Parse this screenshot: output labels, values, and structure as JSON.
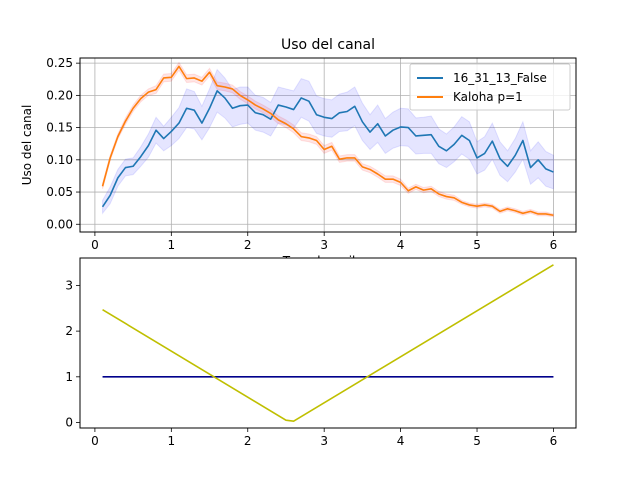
{
  "chart_data": [
    {
      "type": "line",
      "title": "Uso del canal",
      "xlabel": "Tasa de arribos",
      "ylabel": "Uso del canal",
      "xlim": [
        -0.195,
        6.295
      ],
      "ylim": [
        -0.012,
        0.258
      ],
      "x_ticks": [
        0,
        1,
        2,
        3,
        4,
        5,
        6
      ],
      "y_ticks": [
        0.0,
        0.05,
        0.1,
        0.15,
        0.2,
        0.25
      ],
      "y_tick_labels": [
        "0.00",
        "0.05",
        "0.10",
        "0.15",
        "0.20",
        "0.25"
      ],
      "grid": true,
      "legend_position": "top-right",
      "x": [
        0.1,
        0.2,
        0.3,
        0.4,
        0.5,
        0.6,
        0.7,
        0.8,
        0.9,
        1.0,
        1.1,
        1.2,
        1.3,
        1.4,
        1.5,
        1.6,
        1.7,
        1.8,
        1.9,
        2.0,
        2.1,
        2.2,
        2.3,
        2.4,
        2.5,
        2.6,
        2.7,
        2.8,
        2.9,
        3.0,
        3.1,
        3.2,
        3.3,
        3.4,
        3.5,
        3.6,
        3.7,
        3.8,
        3.9,
        4.0,
        4.1,
        4.2,
        4.3,
        4.4,
        4.5,
        4.6,
        4.7,
        4.8,
        4.9,
        5.0,
        5.1,
        5.2,
        5.3,
        5.4,
        5.5,
        5.6,
        5.7,
        5.8,
        5.9,
        6.0
      ],
      "series": [
        {
          "name": "16_31_13_False",
          "color": "#1f77b4",
          "band_color": "#0000ff",
          "values": [
            0.027,
            0.045,
            0.072,
            0.088,
            0.09,
            0.105,
            0.122,
            0.146,
            0.133,
            0.144,
            0.157,
            0.18,
            0.177,
            0.157,
            0.18,
            0.207,
            0.196,
            0.18,
            0.184,
            0.185,
            0.173,
            0.17,
            0.163,
            0.185,
            0.182,
            0.178,
            0.196,
            0.191,
            0.17,
            0.166,
            0.164,
            0.173,
            0.175,
            0.183,
            0.159,
            0.143,
            0.156,
            0.137,
            0.146,
            0.151,
            0.15,
            0.137,
            0.138,
            0.139,
            0.121,
            0.114,
            0.124,
            0.138,
            0.13,
            0.103,
            0.11,
            0.129,
            0.102,
            0.09,
            0.107,
            0.13,
            0.088,
            0.1,
            0.086,
            0.081
          ],
          "lower": [
            0.017,
            0.032,
            0.059,
            0.075,
            0.077,
            0.09,
            0.104,
            0.126,
            0.114,
            0.122,
            0.133,
            0.15,
            0.148,
            0.131,
            0.15,
            0.174,
            0.165,
            0.151,
            0.155,
            0.157,
            0.146,
            0.143,
            0.137,
            0.157,
            0.154,
            0.149,
            0.166,
            0.16,
            0.141,
            0.137,
            0.135,
            0.144,
            0.145,
            0.153,
            0.13,
            0.116,
            0.127,
            0.11,
            0.118,
            0.122,
            0.121,
            0.109,
            0.11,
            0.11,
            0.094,
            0.088,
            0.097,
            0.109,
            0.101,
            0.078,
            0.084,
            0.101,
            0.076,
            0.066,
            0.081,
            0.101,
            0.062,
            0.072,
            0.059,
            0.055
          ],
          "upper": [
            0.037,
            0.058,
            0.085,
            0.101,
            0.103,
            0.12,
            0.14,
            0.166,
            0.152,
            0.166,
            0.181,
            0.21,
            0.206,
            0.183,
            0.21,
            0.24,
            0.227,
            0.209,
            0.213,
            0.213,
            0.2,
            0.197,
            0.189,
            0.213,
            0.21,
            0.207,
            0.226,
            0.222,
            0.199,
            0.195,
            0.193,
            0.202,
            0.205,
            0.213,
            0.188,
            0.17,
            0.185,
            0.164,
            0.174,
            0.18,
            0.179,
            0.165,
            0.166,
            0.168,
            0.148,
            0.14,
            0.151,
            0.167,
            0.159,
            0.128,
            0.136,
            0.157,
            0.128,
            0.114,
            0.133,
            0.159,
            0.114,
            0.128,
            0.113,
            0.107
          ]
        },
        {
          "name": "Kaloha p=1",
          "color": "#ff7f0e",
          "band_color": "#ff0000",
          "values": [
            0.059,
            0.103,
            0.136,
            0.16,
            0.18,
            0.195,
            0.205,
            0.209,
            0.227,
            0.228,
            0.245,
            0.226,
            0.227,
            0.222,
            0.236,
            0.215,
            0.213,
            0.21,
            0.2,
            0.193,
            0.185,
            0.179,
            0.172,
            0.162,
            0.156,
            0.148,
            0.136,
            0.134,
            0.13,
            0.116,
            0.121,
            0.101,
            0.103,
            0.103,
            0.089,
            0.085,
            0.078,
            0.07,
            0.07,
            0.065,
            0.052,
            0.058,
            0.053,
            0.055,
            0.047,
            0.043,
            0.041,
            0.034,
            0.03,
            0.028,
            0.03,
            0.028,
            0.02,
            0.024,
            0.021,
            0.017,
            0.02,
            0.016,
            0.016,
            0.014
          ],
          "lower": [
            0.055,
            0.099,
            0.132,
            0.155,
            0.175,
            0.19,
            0.2,
            0.203,
            0.221,
            0.222,
            0.239,
            0.22,
            0.221,
            0.216,
            0.23,
            0.209,
            0.207,
            0.204,
            0.194,
            0.187,
            0.179,
            0.173,
            0.166,
            0.156,
            0.15,
            0.142,
            0.13,
            0.128,
            0.124,
            0.11,
            0.115,
            0.096,
            0.098,
            0.098,
            0.084,
            0.08,
            0.073,
            0.065,
            0.065,
            0.06,
            0.048,
            0.054,
            0.049,
            0.051,
            0.043,
            0.039,
            0.037,
            0.031,
            0.027,
            0.025,
            0.027,
            0.025,
            0.017,
            0.021,
            0.018,
            0.014,
            0.017,
            0.013,
            0.013,
            0.012
          ],
          "upper": [
            0.063,
            0.107,
            0.14,
            0.165,
            0.185,
            0.2,
            0.21,
            0.215,
            0.233,
            0.234,
            0.251,
            0.232,
            0.233,
            0.228,
            0.242,
            0.221,
            0.219,
            0.216,
            0.206,
            0.199,
            0.191,
            0.185,
            0.178,
            0.168,
            0.162,
            0.154,
            0.142,
            0.14,
            0.136,
            0.122,
            0.127,
            0.106,
            0.108,
            0.108,
            0.094,
            0.09,
            0.083,
            0.075,
            0.075,
            0.07,
            0.056,
            0.062,
            0.057,
            0.059,
            0.051,
            0.047,
            0.045,
            0.037,
            0.033,
            0.031,
            0.033,
            0.031,
            0.023,
            0.027,
            0.024,
            0.02,
            0.023,
            0.019,
            0.019,
            0.016
          ]
        }
      ]
    },
    {
      "type": "line",
      "title": "",
      "xlabel": "",
      "ylabel": "",
      "xlim": [
        -0.195,
        6.295
      ],
      "ylim": [
        -0.12,
        3.6
      ],
      "x_ticks": [
        0,
        1,
        2,
        3,
        4,
        5,
        6
      ],
      "y_ticks": [
        0,
        1,
        2,
        3
      ],
      "y_tick_labels": [
        "0",
        "1",
        "2",
        "3"
      ],
      "grid": false,
      "series": [
        {
          "color": "#00008b",
          "x": [
            0.1,
            6.0
          ],
          "values": [
            1.0,
            1.0
          ]
        },
        {
          "color": "#bfbf00",
          "x": [
            0.1,
            2.5,
            2.6,
            6.0
          ],
          "values": [
            2.47,
            0.05,
            0.03,
            3.45
          ]
        }
      ]
    }
  ]
}
